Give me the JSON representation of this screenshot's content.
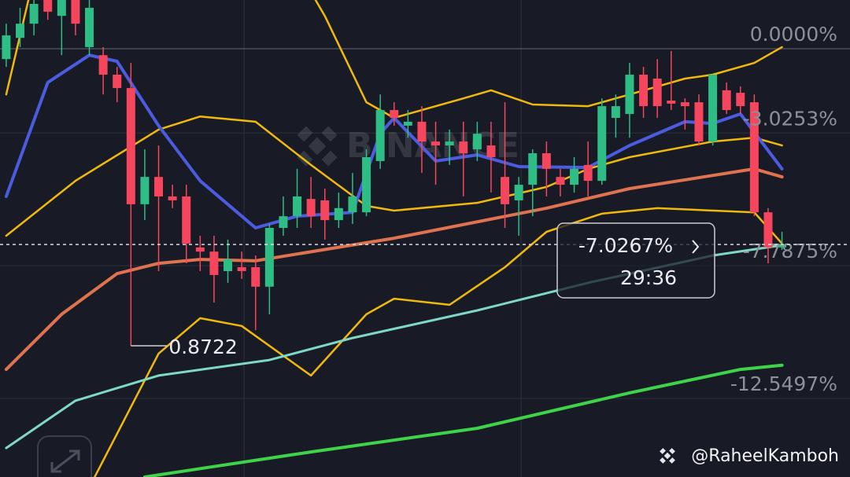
{
  "chart_data": {
    "type": "candlestick",
    "up_color": "#2ebd85",
    "down_color": "#f6465d",
    "xlim": [
      -0.45,
      60.91
    ],
    "ylim": [
      -15.37,
      1.75
    ],
    "yticks": [
      {
        "value": 0,
        "label": "0.0000%"
      },
      {
        "value": -3.0253,
        "label": "-3.0253%"
      },
      {
        "value": -7.7875,
        "label": "-7.7875%"
      },
      {
        "value": -12.5497,
        "label": "-12.5497%"
      }
    ],
    "grid": true,
    "open": [
      -0.37,
      0.39,
      0.9,
      1.89,
      1.18,
      1.75,
      0.06,
      -0.23,
      -0.93,
      -1.41,
      -5.58,
      -4.6,
      -5.3,
      -5.3,
      -7.13,
      -7.28,
      -7.98,
      -7.84,
      -7.84,
      -8.54,
      -6.43,
      -6.01,
      -5.39,
      -5.44,
      -6.15,
      -5.87,
      -5.87,
      -4.03,
      -2.2,
      -2.76,
      -2.62,
      -3.33,
      -3.47,
      -3.33,
      -3.61,
      -3.47,
      -4.6,
      -5.44,
      -4.88,
      -3.75,
      -4.6,
      -4.88,
      -4.17,
      -4.74,
      -2.48,
      -2.34,
      -0.93,
      -1.07,
      -1.86,
      -1.92,
      -1.92,
      -3.33,
      -1.49,
      -1.58,
      -1.92,
      -5.87,
      -7.13
    ],
    "close": [
      0.48,
      0.9,
      1.61,
      1.33,
      2.03,
      0.9,
      1.47,
      -0.93,
      -1.41,
      -5.58,
      -4.6,
      -5.3,
      -5.44,
      -6.99,
      -7.28,
      -8.12,
      -7.56,
      -7.98,
      -8.54,
      -6.43,
      -6.01,
      -5.3,
      -6.01,
      -6.15,
      -5.72,
      -5.3,
      -3.89,
      -2.2,
      -2.48,
      -2.62,
      -3.33,
      -3.47,
      -3.33,
      -3.75,
      -3.05,
      -3.89,
      -5.58,
      -4.88,
      -3.75,
      -4.31,
      -4.88,
      -4.31,
      -4.74,
      -2.06,
      -2.06,
      -0.93,
      -2.06,
      -2.06,
      -1.97,
      -2.06,
      -3.33,
      -0.93,
      -2.2,
      -2.06,
      -5.87,
      -7.13,
      -7.0267
    ],
    "high": [
      0.9,
      1.47,
      2.03,
      2.31,
      2.59,
      2.03,
      1.89,
      0.06,
      -0.65,
      -0.51,
      -3.61,
      -3.47,
      -4.88,
      -4.88,
      -6.71,
      -6.71,
      -6.85,
      -7.28,
      -7.42,
      -6.29,
      -5.3,
      -4.31,
      -4.6,
      -5.02,
      -5.16,
      -4.46,
      -3.61,
      -1.64,
      -1.92,
      -2.2,
      -2.06,
      -2.62,
      -2.9,
      -2.62,
      -2.62,
      -2.62,
      -1.92,
      -4.6,
      -3.61,
      -3.33,
      -4.31,
      -3.89,
      -3.33,
      -1.78,
      -1.64,
      -0.51,
      -0.65,
      -0.37,
      -0.08,
      -1.78,
      -1.64,
      -0.93,
      -1.21,
      -1.35,
      -1.64,
      -5.72,
      -6.57
    ],
    "low": [
      -0.65,
      0.06,
      0.48,
      1.04,
      -0.23,
      0.48,
      -0.23,
      -1.64,
      -1.92,
      -10.66,
      -6.15,
      -7.98,
      -5.72,
      -7.7,
      -7.98,
      -9.11,
      -8.4,
      -8.26,
      -10.1,
      -9.53,
      -6.71,
      -6.43,
      -6.43,
      -6.85,
      -6.43,
      -6.29,
      -6.01,
      -4.31,
      -2.76,
      -3.19,
      -4.46,
      -4.88,
      -4.17,
      -5.3,
      -4.03,
      -5.16,
      -6.43,
      -6.71,
      -6.01,
      -5.3,
      -5.3,
      -5.16,
      -5.3,
      -4.88,
      -3.19,
      -3.19,
      -2.48,
      -2.48,
      -2.2,
      -2.9,
      -3.47,
      -3.47,
      -2.34,
      -2.34,
      -6.01,
      -7.7,
      -7.22
    ],
    "overlays": [
      {
        "color": "#f0b90b",
        "x": [
          0,
          2,
          5,
          15,
          21,
          23,
          26,
          28,
          33,
          35,
          38,
          42,
          45,
          49,
          51,
          54,
          56
        ],
        "values": [
          -1.64,
          2.59,
          3.44,
          4.0,
          2.88,
          1.18,
          -1.92,
          -2.48,
          -1.78,
          -1.49,
          -2.0,
          -2.06,
          -1.64,
          -1.07,
          -0.93,
          -0.51,
          0.06
        ]
      },
      {
        "color": "#f0b90b",
        "x": [
          0,
          5,
          11,
          14,
          18,
          22,
          26,
          28,
          34,
          39,
          42,
          45,
          51,
          54,
          56
        ],
        "values": [
          -6.71,
          -4.74,
          -2.9,
          -2.43,
          -2.62,
          -4.17,
          -5.64,
          -5.81,
          -5.53,
          -4.96,
          -4.31,
          -3.89,
          -3.33,
          -3.19,
          -3.47
        ]
      },
      {
        "color": "#f0b90b",
        "x": [
          6,
          11,
          14,
          17,
          22,
          26,
          28,
          32,
          36,
          39,
          43,
          47,
          54,
          56
        ],
        "values": [
          -15.74,
          -10.94,
          -9.67,
          -9.95,
          -11.73,
          -9.53,
          -8.97,
          -9.19,
          -7.84,
          -6.57,
          -5.92,
          -5.72,
          -5.87,
          -6.99
        ]
      },
      {
        "color": "#4c5ce0",
        "x": [
          0,
          3,
          6,
          8,
          11,
          14,
          18,
          21,
          25,
          27,
          28,
          31,
          34,
          37,
          42,
          45,
          49,
          51,
          53,
          56
        ],
        "values": [
          -5.3,
          -1.21,
          -0.23,
          -0.45,
          -2.76,
          -4.74,
          -6.43,
          -6.01,
          -5.87,
          -3.05,
          -2.48,
          -4.03,
          -3.81,
          -4.23,
          -4.26,
          -3.47,
          -2.62,
          -2.68,
          -2.34,
          -4.31
        ]
      },
      {
        "color": "#e0734f",
        "x": [
          0,
          4,
          8,
          11,
          14,
          18,
          28,
          39,
          45,
          54,
          56
        ],
        "values": [
          -11.51,
          -9.53,
          -8.07,
          -7.7,
          -7.56,
          -7.61,
          -6.8,
          -5.72,
          -5.02,
          -4.31,
          -4.6
        ]
      },
      {
        "color": "#7fd8c7",
        "x": [
          0,
          5,
          11,
          19,
          25,
          34,
          42,
          51,
          56
        ],
        "values": [
          -14.33,
          -12.63,
          -11.73,
          -11.17,
          -10.38,
          -9.39,
          -8.4,
          -7.42,
          -7.05
        ]
      },
      {
        "color": "#3fd34a",
        "x": [
          10,
          22,
          34,
          45,
          53,
          56
        ],
        "values": [
          -15.37,
          -14.47,
          -13.62,
          -12.35,
          -11.51,
          -11.36
        ]
      }
    ],
    "current": {
      "value": -7.0267,
      "label": "-7.0267%"
    },
    "countdown": "29:36",
    "low_label": "0.8722",
    "watermark": "BINANCE",
    "credit": "@RaheelKamboh"
  }
}
